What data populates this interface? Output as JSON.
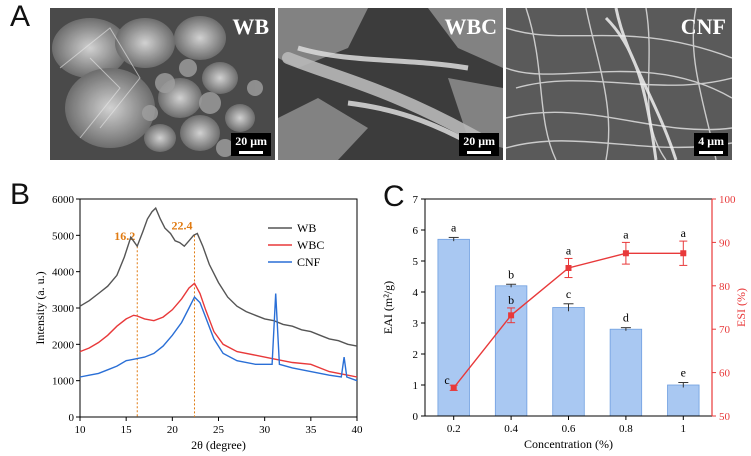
{
  "panels": {
    "A": "A",
    "B": "B",
    "C": "C"
  },
  "sem_images": [
    {
      "label": "WB",
      "scale": "20 μm"
    },
    {
      "label": "WBC",
      "scale": "20 μm"
    },
    {
      "label": "CNF",
      "scale": "4 μm"
    }
  ],
  "colors": {
    "WB": "#555555",
    "WBC": "#e8393a",
    "CNF": "#2a6fd6",
    "peak_annotation": "#e07b12",
    "bar_fill": "#a9c8f2",
    "bar_edge": "#6f9fe0",
    "esi_line": "#e8393a"
  },
  "chart_data": [
    {
      "type": "line",
      "xlabel": "2θ (degree)",
      "ylabel": "Intensity (a. u.)",
      "xlim": [
        10,
        40
      ],
      "ylim": [
        0,
        6000
      ],
      "xticks": [
        "10",
        "15",
        "20",
        "25",
        "30",
        "35",
        "40"
      ],
      "yticks": [
        "0",
        "1000",
        "2000",
        "3000",
        "4000",
        "5000",
        "6000"
      ],
      "legend_position": "top-right",
      "annotations": [
        {
          "text": "16.2",
          "x": 16.2
        },
        {
          "text": "22.4",
          "x": 22.4
        }
      ],
      "series": [
        {
          "name": "WB",
          "x": [
            10,
            11,
            12,
            13,
            14,
            14.8,
            15.5,
            16.2,
            16.8,
            17.3,
            17.8,
            18.2,
            18.7,
            19.2,
            19.8,
            20.3,
            20.8,
            21.3,
            21.8,
            22.3,
            22.7,
            23.3,
            24,
            25,
            26,
            27,
            28,
            29,
            30,
            31,
            32,
            33,
            34,
            35,
            36,
            37,
            38,
            39,
            40
          ],
          "values": [
            3050,
            3200,
            3400,
            3600,
            3900,
            4400,
            4950,
            4700,
            5100,
            5450,
            5650,
            5750,
            5450,
            5200,
            5050,
            4850,
            4800,
            4700,
            4850,
            5000,
            5050,
            4700,
            4200,
            3700,
            3300,
            3050,
            2900,
            2800,
            2700,
            2650,
            2550,
            2500,
            2400,
            2350,
            2250,
            2150,
            2100,
            2000,
            1950
          ]
        },
        {
          "name": "WBC",
          "x": [
            10,
            11,
            12,
            13,
            14,
            15,
            15.8,
            16.2,
            17,
            18,
            19,
            20,
            21,
            21.8,
            22.4,
            23,
            23.6,
            24.5,
            25.5,
            27,
            29,
            31,
            33,
            35,
            37,
            39,
            40
          ],
          "values": [
            1800,
            1900,
            2050,
            2250,
            2500,
            2700,
            2800,
            2780,
            2700,
            2650,
            2750,
            2950,
            3250,
            3550,
            3680,
            3400,
            2950,
            2350,
            2000,
            1800,
            1700,
            1600,
            1500,
            1450,
            1250,
            1150,
            1100
          ]
        },
        {
          "name": "CNF",
          "x": [
            10,
            11,
            12,
            13,
            14,
            15,
            16,
            17,
            18,
            19,
            20,
            21,
            21.8,
            22.4,
            23,
            23.6,
            24.5,
            25.5,
            27,
            29,
            30.8,
            31.2,
            31.6,
            33,
            35,
            37,
            38.3,
            38.6,
            38.9,
            40
          ],
          "values": [
            1100,
            1150,
            1200,
            1300,
            1400,
            1550,
            1600,
            1650,
            1750,
            1950,
            2250,
            2600,
            3000,
            3300,
            3150,
            2750,
            2150,
            1750,
            1550,
            1450,
            1450,
            3400,
            1450,
            1350,
            1250,
            1150,
            1100,
            1650,
            1100,
            1000
          ]
        }
      ]
    },
    {
      "type": "bar",
      "xlabel": "Concentration (%)",
      "ylabel_left": "EAI (m²/g)",
      "ylabel_right": "ESI (%)",
      "categories": [
        "0.2",
        "0.4",
        "0.6",
        "0.8",
        "1"
      ],
      "ylim_left": [
        0,
        7
      ],
      "yticks_left": [
        "0",
        "1",
        "2",
        "3",
        "4",
        "5",
        "6",
        "7"
      ],
      "ylim_right": [
        50,
        100
      ],
      "yticks_right": [
        "50",
        "60",
        "70",
        "80",
        "90",
        "100"
      ],
      "series": [
        {
          "name": "EAI",
          "axis": "left",
          "values": [
            5.7,
            4.2,
            3.5,
            2.8,
            1.0
          ],
          "errors": [
            0.06,
            0.05,
            0.12,
            0.05,
            0.08
          ],
          "letters": [
            "a",
            "b",
            "c",
            "d",
            "e"
          ]
        },
        {
          "name": "ESI",
          "axis": "right",
          "values": [
            56.5,
            73.2,
            84.1,
            87.5,
            87.5
          ],
          "errors": [
            0.6,
            1.7,
            2.2,
            2.5,
            2.8
          ],
          "letters": [
            "c",
            "b",
            "a",
            "a",
            "a"
          ]
        }
      ]
    }
  ]
}
